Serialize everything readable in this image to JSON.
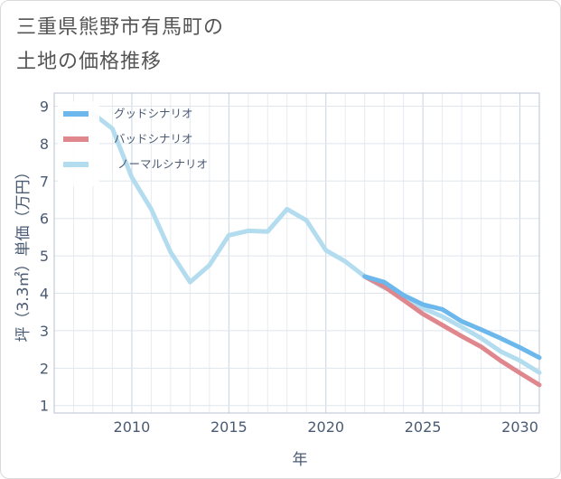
{
  "chart_data": {
    "type": "line",
    "title_line1": "三重県熊野市有馬町の",
    "title_line2": "土地の価格推移",
    "xlabel": "年",
    "ylabel": "坪（3.3㎡）単価（万円）",
    "xlim": [
      2006,
      2031
    ],
    "ylim": [
      0.8,
      9.35
    ],
    "xticks": [
      2010,
      2015,
      2020,
      2025,
      2030
    ],
    "yticks": [
      1,
      2,
      3,
      4,
      5,
      6,
      7,
      8,
      9
    ],
    "series": [
      {
        "name": "グッドシナリオ",
        "color": "#6cb8ec",
        "x": [
          2022,
          2023,
          2024,
          2025,
          2026,
          2027,
          2028,
          2029,
          2030,
          2031
        ],
        "y": [
          4.45,
          4.3,
          3.95,
          3.7,
          3.57,
          3.25,
          3.03,
          2.8,
          2.55,
          2.28
        ]
      },
      {
        "name": "バッドシナリオ",
        "color": "#e0868d",
        "x": [
          2022,
          2023,
          2024,
          2025,
          2026,
          2027,
          2028,
          2029,
          2030,
          2031
        ],
        "y": [
          4.45,
          4.18,
          3.82,
          3.45,
          3.15,
          2.85,
          2.57,
          2.2,
          1.87,
          1.55
        ]
      },
      {
        "name": "ノーマルシナリオ",
        "color": "#b4dcef",
        "x": [
          2008,
          2009,
          2010,
          2011,
          2012,
          2013,
          2014,
          2015,
          2016,
          2017,
          2018,
          2019,
          2020,
          2021,
          2022,
          2023,
          2024,
          2025,
          2026,
          2027,
          2028,
          2029,
          2030,
          2031
        ],
        "y": [
          8.8,
          8.4,
          7.1,
          6.25,
          5.1,
          4.3,
          4.75,
          5.55,
          5.67,
          5.65,
          6.25,
          5.95,
          5.15,
          4.85,
          4.45,
          4.15,
          3.95,
          3.6,
          3.38,
          3.1,
          2.8,
          2.45,
          2.2,
          1.88
        ]
      }
    ]
  }
}
